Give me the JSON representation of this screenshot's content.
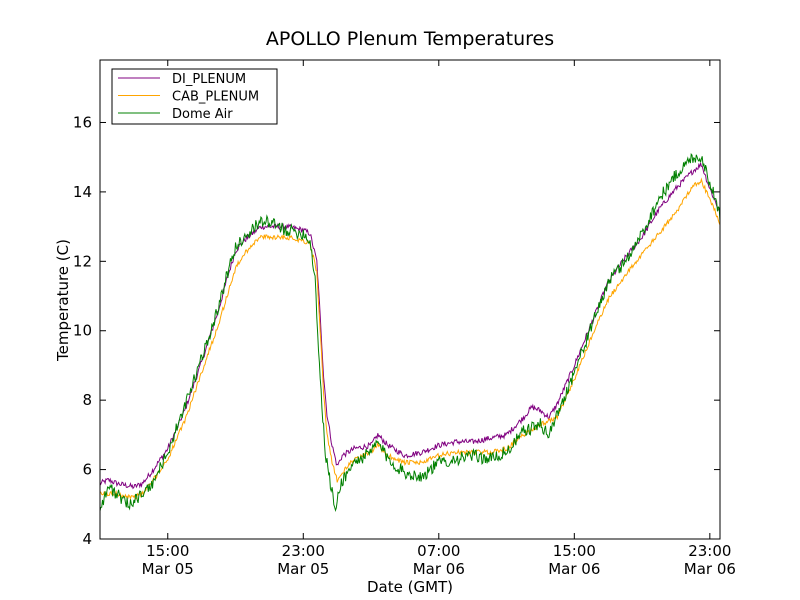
{
  "chart_data": {
    "type": "line",
    "title": "APOLLO Plenum Temperatures",
    "xlabel": "Date (GMT)",
    "ylabel": "Temperature (C)",
    "x_unit": "hours since Mar 05 11:00 GMT",
    "xlim": [
      0,
      36.6
    ],
    "ylim": [
      4,
      17.8
    ],
    "yticks": [
      4,
      6,
      8,
      10,
      12,
      14,
      16
    ],
    "xticks": [
      {
        "x": 4,
        "line1": "15:00",
        "line2": "Mar 05"
      },
      {
        "x": 12,
        "line1": "23:00",
        "line2": "Mar 05"
      },
      {
        "x": 20,
        "line1": "07:00",
        "line2": "Mar 06"
      },
      {
        "x": 28,
        "line1": "15:00",
        "line2": "Mar 06"
      },
      {
        "x": 36,
        "line1": "23:00",
        "line2": "Mar 06"
      }
    ],
    "legend_position": "top-left",
    "series": [
      {
        "name": "DI_PLENUM",
        "color": "#800080",
        "noise": 0.08,
        "points": [
          [
            0,
            5.6
          ],
          [
            0.5,
            5.7
          ],
          [
            1,
            5.6
          ],
          [
            2,
            5.5
          ],
          [
            2.5,
            5.6
          ],
          [
            3,
            5.9
          ],
          [
            4,
            6.6
          ],
          [
            5,
            7.7
          ],
          [
            6,
            9.1
          ],
          [
            7,
            10.6
          ],
          [
            7.5,
            11.5
          ],
          [
            8,
            12.3
          ],
          [
            8.5,
            12.6
          ],
          [
            9,
            12.8
          ],
          [
            9.5,
            13.0
          ],
          [
            10,
            13.0
          ],
          [
            11,
            13.0
          ],
          [
            12,
            12.9
          ],
          [
            12.4,
            12.8
          ],
          [
            12.8,
            12.0
          ],
          [
            13.0,
            10.4
          ],
          [
            13.2,
            8.7
          ],
          [
            13.4,
            7.6
          ],
          [
            13.7,
            6.7
          ],
          [
            14.0,
            6.1
          ],
          [
            14.3,
            6.4
          ],
          [
            15,
            6.6
          ],
          [
            16,
            6.7
          ],
          [
            16.4,
            7.0
          ],
          [
            17,
            6.7
          ],
          [
            18,
            6.4
          ],
          [
            19,
            6.5
          ],
          [
            20,
            6.7
          ],
          [
            21,
            6.8
          ],
          [
            22,
            6.8
          ],
          [
            23,
            6.9
          ],
          [
            24,
            7.0
          ],
          [
            25,
            7.5
          ],
          [
            25.5,
            7.8
          ],
          [
            26,
            7.7
          ],
          [
            26.5,
            7.5
          ],
          [
            27,
            7.9
          ],
          [
            28,
            9.0
          ],
          [
            29,
            10.2
          ],
          [
            30,
            11.4
          ],
          [
            31,
            12.1
          ],
          [
            32,
            12.7
          ],
          [
            33,
            13.5
          ],
          [
            34,
            14.1
          ],
          [
            35,
            14.6
          ],
          [
            35.5,
            14.8
          ],
          [
            36,
            14.1
          ],
          [
            36.6,
            13.4
          ]
        ]
      },
      {
        "name": "CAB_PLENUM",
        "color": "#FFA500",
        "noise": 0.07,
        "points": [
          [
            0,
            5.3
          ],
          [
            1,
            5.3
          ],
          [
            2,
            5.2
          ],
          [
            2.5,
            5.3
          ],
          [
            3,
            5.6
          ],
          [
            4,
            6.3
          ],
          [
            5,
            7.4
          ],
          [
            6,
            8.8
          ],
          [
            7,
            10.2
          ],
          [
            7.5,
            11.0
          ],
          [
            8,
            11.8
          ],
          [
            8.5,
            12.2
          ],
          [
            9,
            12.5
          ],
          [
            9.5,
            12.7
          ],
          [
            10,
            12.7
          ],
          [
            11,
            12.7
          ],
          [
            12,
            12.6
          ],
          [
            12.4,
            12.5
          ],
          [
            12.8,
            11.7
          ],
          [
            13.0,
            10.0
          ],
          [
            13.2,
            8.2
          ],
          [
            13.4,
            7.0
          ],
          [
            13.7,
            6.2
          ],
          [
            14.0,
            5.7
          ],
          [
            14.3,
            5.9
          ],
          [
            15,
            6.3
          ],
          [
            16,
            6.5
          ],
          [
            16.4,
            6.7
          ],
          [
            17,
            6.4
          ],
          [
            18,
            6.2
          ],
          [
            19,
            6.2
          ],
          [
            20,
            6.4
          ],
          [
            21,
            6.5
          ],
          [
            22,
            6.5
          ],
          [
            23,
            6.5
          ],
          [
            24,
            6.6
          ],
          [
            25,
            7.0
          ],
          [
            26,
            7.3
          ],
          [
            27,
            7.5
          ],
          [
            28,
            8.6
          ],
          [
            29,
            9.8
          ],
          [
            30,
            10.9
          ],
          [
            31,
            11.6
          ],
          [
            32,
            12.2
          ],
          [
            33,
            12.8
          ],
          [
            34,
            13.4
          ],
          [
            35,
            14.2
          ],
          [
            35.5,
            14.3
          ],
          [
            36,
            13.8
          ],
          [
            36.6,
            13.1
          ]
        ]
      },
      {
        "name": "Dome Air",
        "color": "#008000",
        "noise": 0.18,
        "points": [
          [
            0,
            4.9
          ],
          [
            0.5,
            5.5
          ],
          [
            1,
            5.3
          ],
          [
            1.5,
            5.0
          ],
          [
            2,
            5.1
          ],
          [
            3,
            5.5
          ],
          [
            4,
            6.5
          ],
          [
            5,
            7.8
          ],
          [
            6,
            9.2
          ],
          [
            7,
            10.7
          ],
          [
            7.5,
            11.6
          ],
          [
            8,
            12.4
          ],
          [
            8.5,
            12.7
          ],
          [
            9,
            12.9
          ],
          [
            9.5,
            13.2
          ],
          [
            10,
            13.1
          ],
          [
            11,
            12.9
          ],
          [
            12,
            12.8
          ],
          [
            12.4,
            12.6
          ],
          [
            12.7,
            11.5
          ],
          [
            12.9,
            9.5
          ],
          [
            13.1,
            7.8
          ],
          [
            13.3,
            6.5
          ],
          [
            13.6,
            5.6
          ],
          [
            13.9,
            4.8
          ],
          [
            14.2,
            5.6
          ],
          [
            15,
            6.2
          ],
          [
            16,
            6.5
          ],
          [
            16.4,
            6.8
          ],
          [
            17,
            6.3
          ],
          [
            18,
            5.9
          ],
          [
            19,
            5.8
          ],
          [
            20,
            6.2
          ],
          [
            21,
            6.3
          ],
          [
            22,
            6.4
          ],
          [
            23,
            6.3
          ],
          [
            24,
            6.5
          ],
          [
            25,
            7.1
          ],
          [
            26,
            7.3
          ],
          [
            26.5,
            7.0
          ],
          [
            27,
            7.6
          ],
          [
            28,
            8.8
          ],
          [
            29,
            10.1
          ],
          [
            30,
            11.4
          ],
          [
            31,
            12.0
          ],
          [
            32,
            12.8
          ],
          [
            33,
            13.8
          ],
          [
            34,
            14.5
          ],
          [
            35,
            15.0
          ],
          [
            35.5,
            15.0
          ],
          [
            36,
            14.3
          ],
          [
            36.6,
            13.3
          ]
        ]
      }
    ]
  }
}
